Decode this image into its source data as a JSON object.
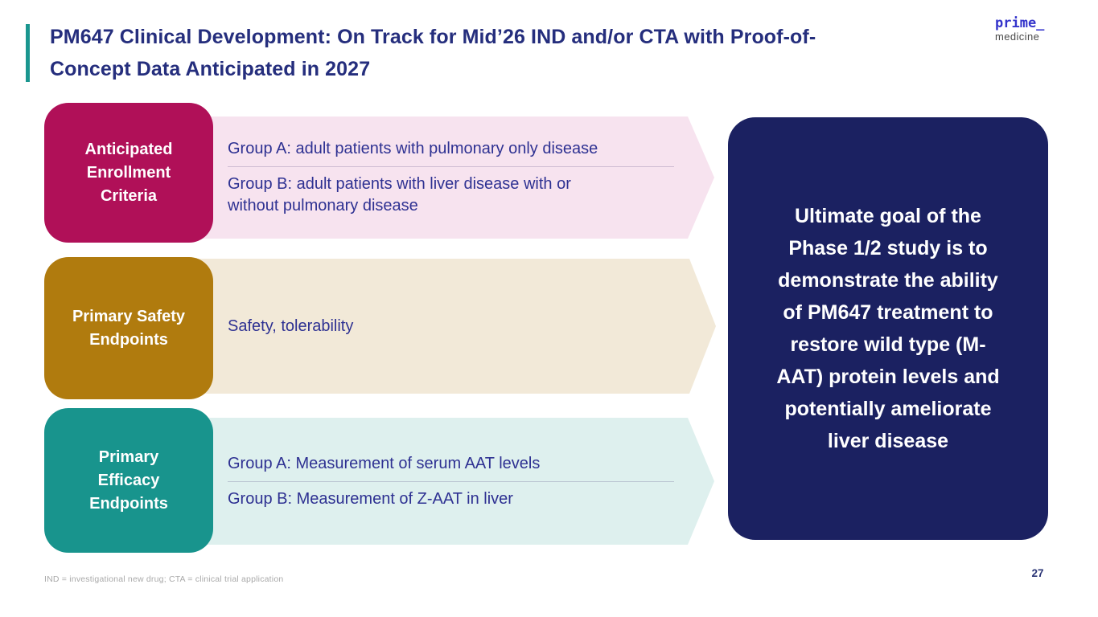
{
  "slide": {
    "title": "PM647 Clinical Development: On Track for Mid’26 IND and/or CTA with Proof-of-\nConcept Data Anticipated in 2027",
    "footnote": "IND = investigational new drug; CTA = clinical trial application",
    "page_number": "27"
  },
  "logo": {
    "line1": "prime_",
    "line2": "medicine"
  },
  "rows": [
    {
      "label": "Anticipated\nEnrollment\nCriteria",
      "label_color": "#b01058",
      "band_color": "#f7e3ef",
      "items": [
        "Group A: adult patients with pulmonary only disease",
        "Group B: adult patients with liver disease with or\nwithout pulmonary disease"
      ]
    },
    {
      "label": "Primary Safety\nEndpoints",
      "label_color": "#b07b0e",
      "band_color": "#f2e9d8",
      "items": [
        "Safety, tolerability"
      ]
    },
    {
      "label": "Primary\nEfficacy\nEndpoints",
      "label_color": "#18948d",
      "band_color": "#def0ee",
      "items": [
        "Group A: Measurement of serum AAT levels",
        "Group B: Measurement of Z-AAT in liver"
      ]
    }
  ],
  "goal_box": {
    "text": "Ultimate goal of the\nPhase 1/2 study is to\ndemonstrate the ability\nof PM647 treatment to\nrestore wild type (M-\nAAT) protein levels and\npotentially ameliorate\nliver disease",
    "background": "#1b2161",
    "text_color": "#ffffff"
  },
  "colors": {
    "title_text": "#252e7d",
    "body_text": "#2e3192",
    "accent_bar": "#1a968f",
    "logo_blue": "#3434cb",
    "logo_gray": "#4a4a4a",
    "footnote_gray": "#a9a9a9"
  }
}
